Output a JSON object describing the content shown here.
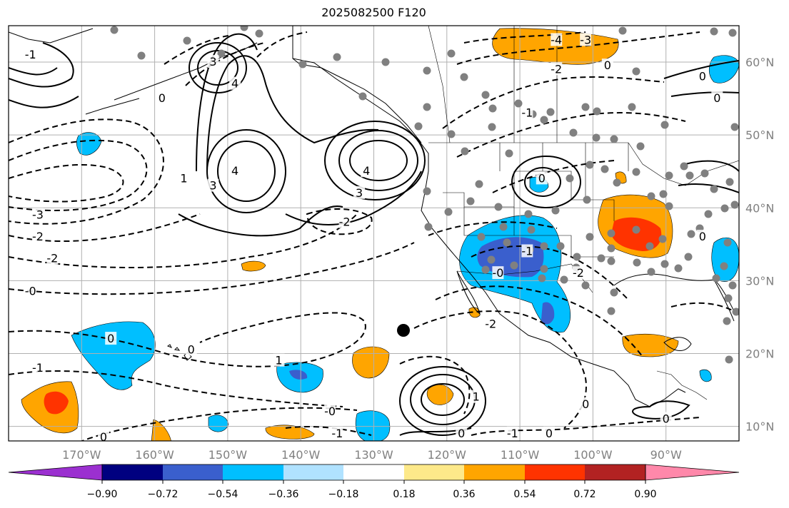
{
  "title": "2025082500 F120",
  "colors": {
    "background": "#ffffff",
    "grid": "#b0b0b0",
    "tick_label": "#808080",
    "contour": "#000000",
    "station": "#808080"
  },
  "map": {
    "lon_range": [
      -180,
      -80
    ],
    "lat_range": [
      8,
      65
    ],
    "lon_ticks": [
      {
        "value": -170,
        "label": "170°W"
      },
      {
        "value": -160,
        "label": "160°W"
      },
      {
        "value": -150,
        "label": "150°W"
      },
      {
        "value": -140,
        "label": "140°W"
      },
      {
        "value": -130,
        "label": "130°W"
      },
      {
        "value": -120,
        "label": "120°W"
      },
      {
        "value": -110,
        "label": "110°W"
      },
      {
        "value": -100,
        "label": "100°W"
      },
      {
        "value": -90,
        "label": "90°W"
      }
    ],
    "lat_ticks": [
      {
        "value": 60,
        "label": "60°N"
      },
      {
        "value": 50,
        "label": "50°N"
      },
      {
        "value": 40,
        "label": "40°N"
      },
      {
        "value": 30,
        "label": "30°N"
      },
      {
        "value": 20,
        "label": "20°N"
      },
      {
        "value": 10,
        "label": "10°N"
      }
    ],
    "contour_labels": [
      {
        "text": "3",
        "lon": -152,
        "lat": 60
      },
      {
        "text": "4",
        "lon": -149,
        "lat": 57
      },
      {
        "text": "3",
        "lon": -152,
        "lat": 43
      },
      {
        "text": "4",
        "lon": -149,
        "lat": 45
      },
      {
        "text": "4",
        "lon": -131,
        "lat": 45
      },
      {
        "text": "3",
        "lon": -132,
        "lat": 42
      },
      {
        "text": "1",
        "lon": -156,
        "lat": 44
      },
      {
        "text": "0",
        "lon": -159,
        "lat": 55
      },
      {
        "text": "-3",
        "lon": -176,
        "lat": 39
      },
      {
        "text": "-2",
        "lon": -176,
        "lat": 36
      },
      {
        "text": "-2",
        "lon": -174,
        "lat": 33
      },
      {
        "text": "-0",
        "lon": -177,
        "lat": 28.5
      },
      {
        "text": "-1",
        "lon": -176,
        "lat": 18
      },
      {
        "text": "0",
        "lon": -166,
        "lat": 22
      },
      {
        "text": "0",
        "lon": -155,
        "lat": 20.5
      },
      {
        "text": "1",
        "lon": -143,
        "lat": 19
      },
      {
        "text": "-0",
        "lon": -136,
        "lat": 12
      },
      {
        "text": "-1",
        "lon": -135,
        "lat": 9
      },
      {
        "text": "-2",
        "lon": -134,
        "lat": 38
      },
      {
        "text": "-0",
        "lon": -113,
        "lat": 31
      },
      {
        "text": "-2",
        "lon": -114,
        "lat": 24
      },
      {
        "text": "-1",
        "lon": -109,
        "lat": 34
      },
      {
        "text": "-2",
        "lon": -102,
        "lat": 31
      },
      {
        "text": "0",
        "lon": -107,
        "lat": 44
      },
      {
        "text": "-4",
        "lon": -105,
        "lat": 63
      },
      {
        "text": "-3",
        "lon": -101,
        "lat": 63
      },
      {
        "text": "-2",
        "lon": -105,
        "lat": 59
      },
      {
        "text": "0",
        "lon": -98,
        "lat": 59.5
      },
      {
        "text": "-1",
        "lon": -109,
        "lat": 53
      },
      {
        "text": "1",
        "lon": -116,
        "lat": 14
      },
      {
        "text": "0",
        "lon": -118,
        "lat": 9
      },
      {
        "text": "-1",
        "lon": -111,
        "lat": 9
      },
      {
        "text": "0",
        "lon": -101,
        "lat": 13
      },
      {
        "text": "0",
        "lon": -106,
        "lat": 9
      },
      {
        "text": "0",
        "lon": -90,
        "lat": 11
      },
      {
        "text": "0",
        "lon": -85,
        "lat": 36
      },
      {
        "text": "0",
        "lon": -85,
        "lat": 58
      },
      {
        "text": "0",
        "lon": -83,
        "lat": 55
      },
      {
        "text": "-1",
        "lon": -177,
        "lat": 61
      },
      {
        "text": "0",
        "lon": -167,
        "lat": 8.5
      }
    ]
  },
  "colorbar": {
    "ticks": [
      "−0.90",
      "−0.72",
      "−0.54",
      "−0.36",
      "−0.18",
      "0.18",
      "0.36",
      "0.54",
      "0.72",
      "0.90"
    ],
    "colors": [
      "#9b30d0",
      "#000080",
      "#3a5fcd",
      "#00bfff",
      "#b0e2ff",
      "#ffffff",
      "#fde98a",
      "#ffa500",
      "#ff3300",
      "#b22222",
      "#ff88aa"
    ]
  }
}
